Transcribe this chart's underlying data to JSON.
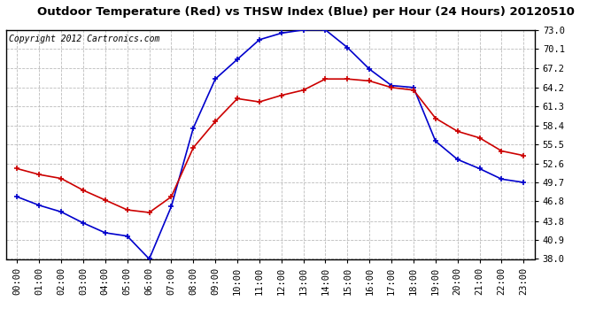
{
  "title": "Outdoor Temperature (Red) vs THSW Index (Blue) per Hour (24 Hours) 20120510",
  "copyright_text": "Copyright 2012 Cartronics.com",
  "hours": [
    0,
    1,
    2,
    3,
    4,
    5,
    6,
    7,
    8,
    9,
    10,
    11,
    12,
    13,
    14,
    15,
    16,
    17,
    18,
    19,
    20,
    21,
    22,
    23
  ],
  "red_temp": [
    51.8,
    50.9,
    50.3,
    48.5,
    47.0,
    45.5,
    45.1,
    47.5,
    55.0,
    59.0,
    62.5,
    62.0,
    63.0,
    63.8,
    65.5,
    65.5,
    65.2,
    64.2,
    63.8,
    59.5,
    57.5,
    56.5,
    54.5,
    53.8
  ],
  "blue_thsw": [
    47.5,
    46.2,
    45.2,
    43.5,
    42.0,
    41.5,
    38.0,
    46.0,
    58.0,
    65.5,
    68.5,
    71.5,
    72.5,
    73.0,
    73.0,
    70.3,
    67.0,
    64.5,
    64.2,
    56.0,
    53.2,
    51.8,
    50.2,
    49.7
  ],
  "ylim_min": 38.0,
  "ylim_max": 73.0,
  "yticks": [
    38.0,
    40.9,
    43.8,
    46.8,
    49.7,
    52.6,
    55.5,
    58.4,
    61.3,
    64.2,
    67.2,
    70.1,
    73.0
  ],
  "red_color": "#cc0000",
  "blue_color": "#0000cc",
  "background_color": "#ffffff",
  "plot_bg_color": "#ffffff",
  "grid_color": "#bbbbbb",
  "title_fontsize": 9.5,
  "copyright_fontsize": 7,
  "tick_fontsize": 7.5
}
